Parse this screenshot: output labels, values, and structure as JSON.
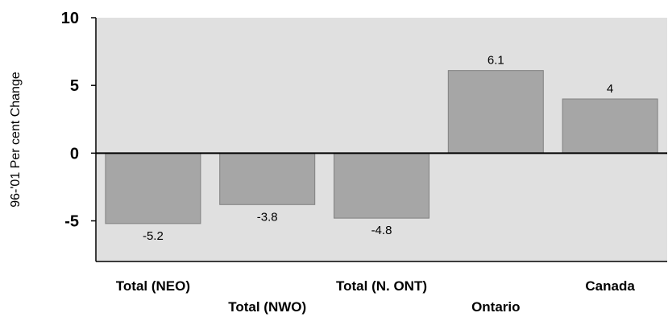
{
  "chart_data": {
    "type": "bar",
    "title": "",
    "xlabel": "",
    "ylabel": "96-'01 Per cent Change",
    "categories": [
      "Total (NEO)",
      "Total (NWO)",
      "Total (N. ONT)",
      "Ontario",
      "Canada"
    ],
    "values": [
      -5.2,
      -3.8,
      -4.8,
      6.1,
      4
    ],
    "data_labels": [
      "-5.2",
      "-3.8",
      "-4.8",
      "6.1",
      "4"
    ],
    "ylim": [
      -8,
      10
    ],
    "yticks": [
      10,
      5,
      0,
      -5
    ],
    "ytick_labels": [
      "10",
      "5",
      "0",
      "-5"
    ],
    "grid": false,
    "legend": "none",
    "colors": {
      "plot_background": "#e0e0e0",
      "bar_fill": "#a6a6a6",
      "bar_stroke": "#808080"
    }
  }
}
